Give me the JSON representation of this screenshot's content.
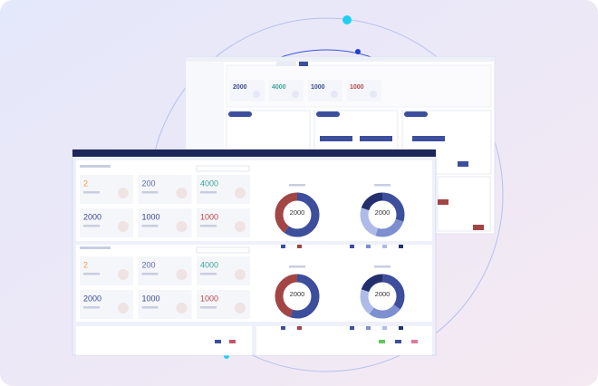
{
  "back_window": {
    "stats": [
      2000,
      4000,
      1000,
      1000
    ],
    "stat_colors": [
      "#3b4a8f",
      "#3aa59a",
      "#3b4a8f",
      "#b8474a"
    ]
  },
  "front_window": {
    "stat_colors": [
      "#f0a04b",
      "#5a6bb5",
      "#3aa59a",
      "#3b4a8f",
      "#3b4a8f",
      "#b8474a"
    ],
    "panels": [
      {
        "stats": [
          2,
          200,
          4000,
          2000,
          1000,
          1000
        ],
        "donuts": [
          {
            "center": 2000,
            "segments": [
              {
                "value": 60,
                "color": "#3d4e9c"
              },
              {
                "value": 40,
                "color": "#a34545"
              }
            ]
          },
          {
            "center": 2000,
            "segments": [
              {
                "value": 30,
                "color": "#3d4e9c"
              },
              {
                "value": 25,
                "color": "#7d8fd0"
              },
              {
                "value": 25,
                "color": "#aebbe8"
              },
              {
                "value": 20,
                "color": "#24306e"
              }
            ]
          }
        ]
      },
      {
        "stats": [
          2,
          200,
          4000,
          2000,
          1000,
          1000
        ],
        "donuts": [
          {
            "center": 2000,
            "segments": [
              {
                "value": 55,
                "color": "#3d4e9c"
              },
              {
                "value": 45,
                "color": "#a34545"
              }
            ]
          },
          {
            "center": 2000,
            "segments": [
              {
                "value": 35,
                "color": "#3d4e9c"
              },
              {
                "value": 25,
                "color": "#7d8fd0"
              },
              {
                "value": 20,
                "color": "#aebbe8"
              },
              {
                "value": 20,
                "color": "#24306e"
              }
            ]
          }
        ]
      }
    ]
  }
}
